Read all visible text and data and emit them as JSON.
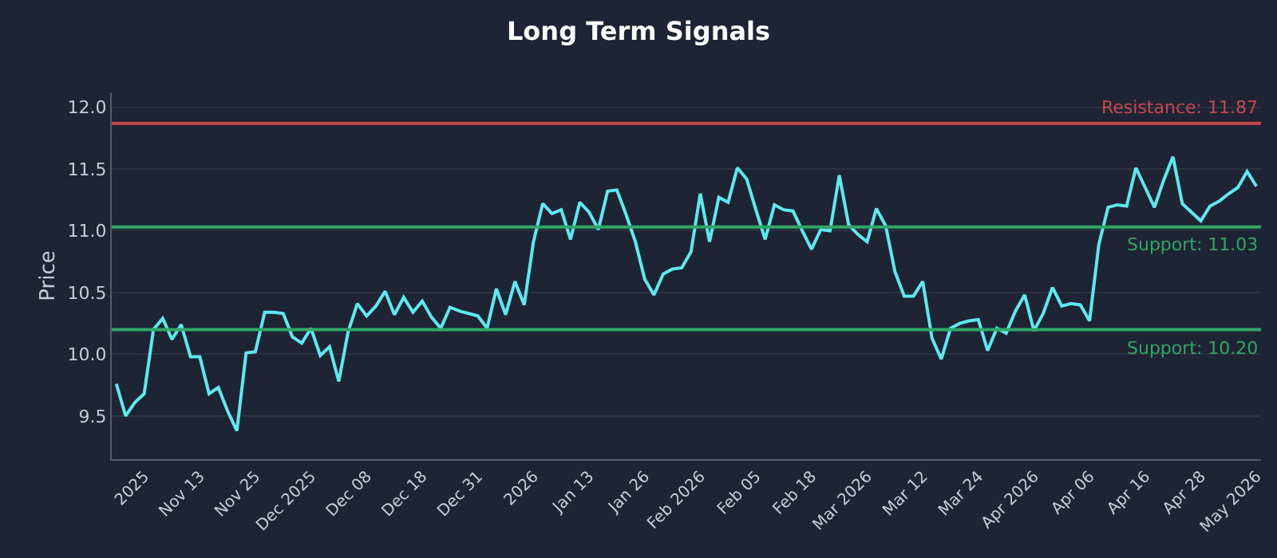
{
  "chart_data": {
    "type": "line",
    "title": "Long Term Signals",
    "ylabel": "Price",
    "categories": [
      null,
      null,
      null,
      "2025",
      null,
      null,
      null,
      null,
      null,
      "Nov 13",
      null,
      null,
      null,
      null,
      null,
      "Nov 25",
      null,
      null,
      null,
      null,
      null,
      "Dec 2025",
      null,
      null,
      null,
      null,
      null,
      "Dec 08",
      null,
      null,
      null,
      null,
      null,
      "Dec 18",
      null,
      null,
      null,
      null,
      null,
      "Dec 31",
      null,
      null,
      null,
      null,
      null,
      "2026",
      null,
      null,
      null,
      null,
      null,
      "Jan 13",
      null,
      null,
      null,
      null,
      null,
      "Jan 26",
      null,
      null,
      null,
      null,
      null,
      "Feb 2026",
      null,
      null,
      null,
      null,
      null,
      "Feb 05",
      null,
      null,
      null,
      null,
      null,
      "Feb 18",
      null,
      null,
      null,
      null,
      null,
      "Mar 2026",
      null,
      null,
      null,
      null,
      null,
      "Mar 12",
      null,
      null,
      null,
      null,
      null,
      "Mar 24",
      null,
      null,
      null,
      null,
      null,
      "Apr 2026",
      null,
      null,
      null,
      null,
      null,
      "Apr 06",
      null,
      null,
      null,
      null,
      null,
      "Apr 16",
      null,
      null,
      null,
      null,
      null,
      "Apr 28",
      null,
      null,
      null,
      null,
      null,
      "May 2026"
    ],
    "series": [
      {
        "color": "#5ee8f0",
        "values": [
          9.76,
          9.5,
          9.61,
          9.68,
          10.2,
          10.29,
          10.12,
          10.24,
          9.98,
          9.98,
          9.68,
          9.73,
          9.54,
          9.38,
          10.01,
          10.02,
          10.34,
          10.34,
          10.33,
          10.14,
          10.09,
          10.21,
          9.99,
          10.06,
          9.78,
          10.18,
          10.41,
          10.31,
          10.39,
          10.51,
          10.32,
          10.46,
          10.34,
          10.43,
          10.3,
          10.21,
          10.38,
          10.35,
          10.33,
          10.31,
          10.21,
          10.53,
          10.32,
          10.59,
          10.4,
          10.91,
          11.22,
          11.14,
          11.17,
          10.93,
          11.23,
          11.15,
          11.01,
          11.32,
          11.33,
          11.13,
          10.91,
          10.61,
          10.48,
          10.65,
          10.69,
          10.7,
          10.83,
          11.3,
          10.91,
          11.27,
          11.23,
          11.51,
          11.42,
          11.17,
          10.93,
          11.21,
          11.17,
          11.16,
          11.0,
          10.85,
          11.01,
          11.0,
          11.45,
          11.05,
          10.97,
          10.91,
          11.18,
          11.04,
          10.67,
          10.47,
          10.47,
          10.59,
          10.13,
          9.96,
          10.21,
          10.25,
          10.27,
          10.28,
          10.03,
          10.21,
          10.17,
          10.35,
          10.48,
          10.19,
          10.33,
          10.54,
          10.39,
          10.41,
          10.4,
          10.27,
          10.89,
          11.19,
          11.21,
          11.2,
          11.51,
          11.35,
          11.19,
          11.41,
          11.6,
          11.22,
          11.15,
          11.08,
          11.2,
          11.24,
          11.3,
          11.35,
          11.48,
          11.36
        ]
      }
    ],
    "ylim": [
      9.15,
      12.12
    ],
    "yticks": [
      {
        "value": 9.5,
        "label": "9.5"
      },
      {
        "value": 10,
        "label": "10.0"
      },
      {
        "value": 10.5,
        "label": "10.5"
      },
      {
        "value": 11,
        "label": "11.0"
      },
      {
        "value": 11.5,
        "label": "11.5"
      },
      {
        "value": 12,
        "label": "12.0"
      }
    ],
    "ref_lines": [
      {
        "axis": "y",
        "value": 11.87,
        "label": "Resistance: 11.87",
        "color": "#c8474f"
      },
      {
        "axis": "y",
        "value": 11.03,
        "label": "Support: 11.03",
        "color": "#2fa866"
      },
      {
        "axis": "y",
        "value": 10.2,
        "label": "Support: 10.20",
        "color": "#2fa866"
      }
    ],
    "grid": "y",
    "marker": "none",
    "line_style": "solid"
  }
}
